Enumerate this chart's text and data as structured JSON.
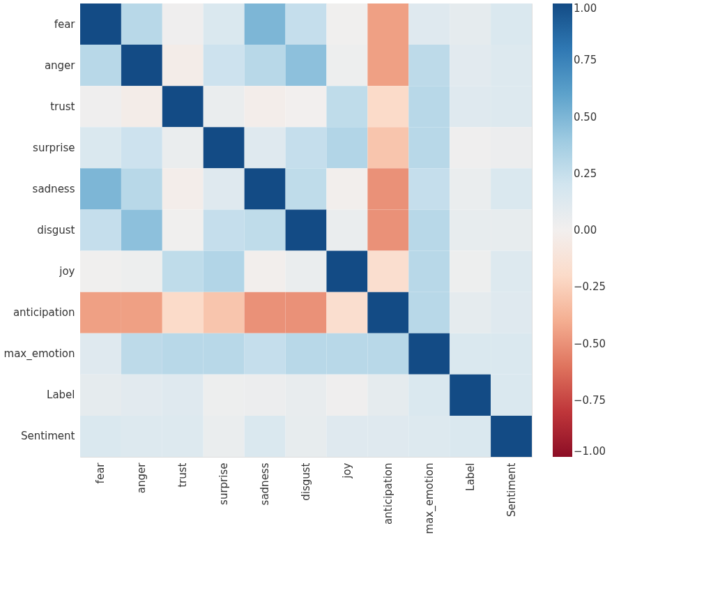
{
  "chart_data": {
    "type": "heatmap",
    "categories": [
      "fear",
      "anger",
      "trust",
      "surprise",
      "sadness",
      "disgust",
      "joy",
      "anticipation",
      "max_emotion",
      "Label",
      "Sentiment"
    ],
    "y_categories": [
      "fear",
      "anger",
      "trust",
      "surprise",
      "sadness",
      "disgust",
      "joy",
      "anticipation",
      "max_emotion",
      "Label",
      "Sentiment"
    ],
    "cells": [
      [
        1,
        0.3,
        0.02,
        0.15,
        0.5,
        0.25,
        0.01,
        -0.45,
        0.12,
        0.08,
        0.15
      ],
      [
        0.3,
        1,
        -0.03,
        0.22,
        0.3,
        0.45,
        0.03,
        -0.45,
        0.28,
        0.1,
        0.13
      ],
      [
        0.02,
        -0.03,
        1,
        0.05,
        -0.02,
        0.0,
        0.27,
        -0.2,
        0.3,
        0.12,
        0.13
      ],
      [
        0.15,
        0.22,
        0.05,
        1,
        0.12,
        0.25,
        0.32,
        -0.3,
        0.3,
        0.02,
        0.04
      ],
      [
        0.5,
        0.3,
        -0.02,
        0.12,
        1,
        0.27,
        -0.01,
        -0.5,
        0.25,
        0.05,
        0.15
      ],
      [
        0.25,
        0.45,
        0.01,
        0.25,
        0.27,
        1,
        0.05,
        -0.5,
        0.3,
        0.07,
        0.07
      ],
      [
        0.01,
        0.03,
        0.27,
        0.32,
        -0.01,
        0.05,
        1,
        -0.17,
        0.3,
        0.03,
        0.13
      ],
      [
        -0.45,
        -0.45,
        -0.2,
        -0.3,
        -0.5,
        -0.5,
        -0.17,
        1,
        0.3,
        0.08,
        0.12
      ],
      [
        0.12,
        0.28,
        0.3,
        0.3,
        0.25,
        0.3,
        0.3,
        0.3,
        1,
        0.15,
        0.15
      ],
      [
        0.08,
        0.1,
        0.12,
        0.03,
        0.04,
        0.06,
        0.02,
        0.08,
        0.15,
        1,
        0.15
      ],
      [
        0.15,
        0.13,
        0.13,
        0.05,
        0.15,
        0.07,
        0.12,
        0.12,
        0.13,
        0.15,
        1
      ]
    ],
    "clim": [
      -1,
      1
    ],
    "cticks": [
      {
        "value": 1,
        "label": "1.00"
      },
      {
        "value": 0.75,
        "label": "0.75"
      },
      {
        "value": 0.5,
        "label": "0.50"
      },
      {
        "value": 0.25,
        "label": "0.25"
      },
      {
        "value": 0,
        "label": "0.00"
      },
      {
        "value": -0.25,
        "label": "−0.25"
      },
      {
        "value": -0.5,
        "label": "−0.50"
      },
      {
        "value": -0.75,
        "label": "−0.75"
      },
      {
        "value": -1,
        "label": "−1.00"
      }
    ]
  }
}
